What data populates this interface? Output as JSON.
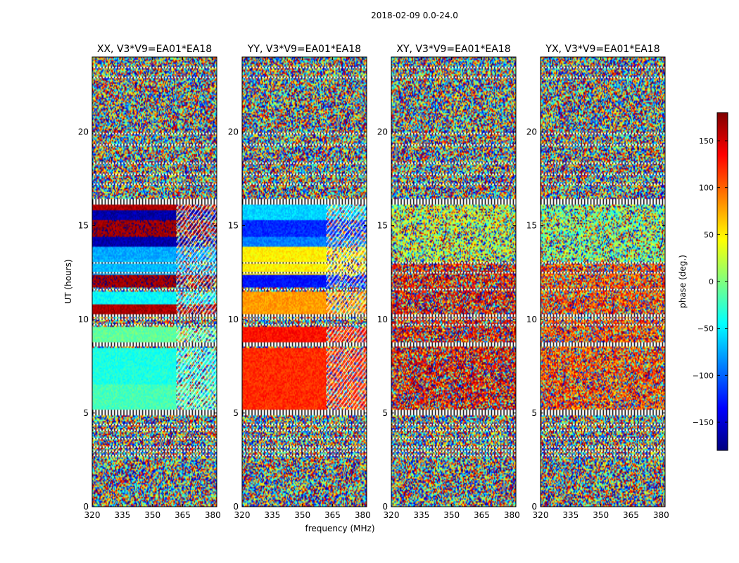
{
  "chart_data": {
    "type": "heatmap",
    "title": "2018-02-09 0.0-24.0",
    "xlabel": "frequency (MHz)",
    "ylabel": "UT (hours)",
    "xlim": [
      320,
      382
    ],
    "ylim": [
      0,
      24
    ],
    "xticks": [
      320,
      335,
      350,
      365,
      380
    ],
    "xtick_labels": [
      "320",
      "335",
      "350",
      "365",
      "380"
    ],
    "yticks": [
      0,
      5,
      10,
      15,
      20
    ],
    "ytick_labels": [
      "0",
      "5",
      "10",
      "15",
      "20"
    ],
    "colorbar": {
      "label": "phase (deg.)",
      "range": [
        -180,
        180
      ],
      "ticks": [
        150,
        100,
        50,
        0,
        -50,
        -100,
        -150
      ],
      "tick_labels": [
        "150",
        "100",
        "50",
        "0",
        "−50",
        "−100",
        "−150"
      ],
      "colormap": [
        "#00007f",
        "#0000ff",
        "#007fff",
        "#00ffff",
        "#7fff7f",
        "#ffff00",
        "#ff7f00",
        "#ff0000",
        "#7f0000"
      ]
    },
    "panels": [
      {
        "title": "XX, V3*V9=EA01*EA18",
        "coherent_bands": [
          {
            "ut": [
              5.2,
              6.5
            ],
            "phase": -20
          },
          {
            "ut": [
              6.5,
              8.5
            ],
            "phase": -35
          },
          {
            "ut": [
              8.8,
              9.6
            ],
            "phase": -10
          },
          {
            "ut": [
              10.3,
              10.8
            ],
            "phase": 165
          },
          {
            "ut": [
              10.8,
              11.5
            ],
            "phase": -45
          },
          {
            "ut": [
              11.7,
              12.4
            ],
            "phase": 170
          },
          {
            "ut": [
              12.4,
              13.2
            ],
            "phase": -70
          },
          {
            "ut": [
              13.2,
              13.9
            ],
            "phase": -75
          },
          {
            "ut": [
              13.9,
              14.4
            ],
            "phase": -165
          },
          {
            "ut": [
              14.4,
              15.3
            ],
            "phase": 170
          },
          {
            "ut": [
              15.3,
              15.8
            ],
            "phase": -165
          },
          {
            "ut": [
              15.8,
              16.1
            ],
            "phase": 165
          }
        ]
      },
      {
        "title": "YY, V3*V9=EA01*EA18",
        "coherent_bands": [
          {
            "ut": [
              5.2,
              8.5
            ],
            "phase": 120
          },
          {
            "ut": [
              8.8,
              9.6
            ],
            "phase": 130
          },
          {
            "ut": [
              10.3,
              11.5
            ],
            "phase": 80
          },
          {
            "ut": [
              11.7,
              12.4
            ],
            "phase": -130
          },
          {
            "ut": [
              12.4,
              13.9
            ],
            "phase": 50
          },
          {
            "ut": [
              13.9,
              14.4
            ],
            "phase": -90
          },
          {
            "ut": [
              14.4,
              15.3
            ],
            "phase": -120
          },
          {
            "ut": [
              15.3,
              16.1
            ],
            "phase": -60
          }
        ]
      },
      {
        "title": "XY, V3*V9=EA01*EA18",
        "coherent_bands": []
      },
      {
        "title": "YX, V3*V9=EA01*EA18",
        "coherent_bands": []
      }
    ],
    "flagged_ut": [
      [
        0.35,
        0.4
      ],
      [
        2.7,
        2.75
      ],
      [
        2.95,
        3.0
      ],
      [
        3.15,
        3.2
      ],
      [
        3.35,
        3.4
      ],
      [
        3.6,
        3.65
      ],
      [
        3.8,
        3.85
      ],
      [
        4.05,
        4.1
      ],
      [
        4.35,
        4.4
      ],
      [
        4.7,
        4.75
      ],
      [
        4.9,
        5.15
      ],
      [
        8.55,
        8.8
      ],
      [
        9.7,
        9.75
      ],
      [
        9.95,
        10.05
      ],
      [
        10.15,
        10.25
      ],
      [
        11.55,
        11.65
      ],
      [
        12.45,
        12.5
      ],
      [
        13.0,
        13.05
      ],
      [
        16.1,
        16.45
      ],
      [
        16.7,
        16.75
      ],
      [
        17.2,
        17.25
      ],
      [
        17.7,
        17.75
      ],
      [
        18.3,
        18.35
      ],
      [
        18.8,
        18.85
      ],
      [
        19.3,
        19.35
      ],
      [
        19.9,
        19.95
      ],
      [
        20.6,
        20.65
      ],
      [
        21.2,
        21.25
      ],
      [
        21.8,
        21.85
      ],
      [
        22.4,
        22.45
      ],
      [
        22.9,
        22.95
      ],
      [
        23.4,
        23.45
      ]
    ]
  }
}
